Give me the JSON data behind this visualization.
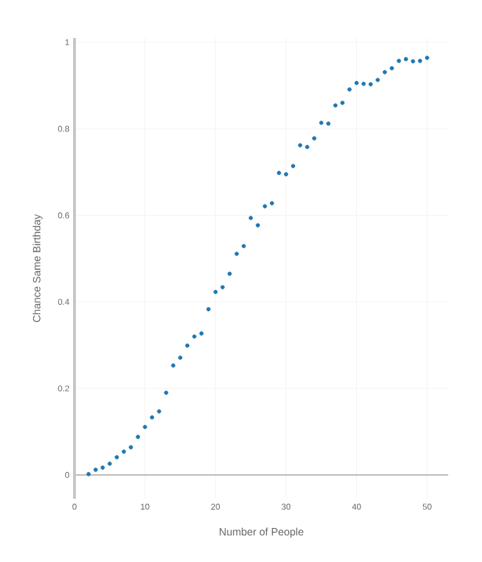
{
  "chart_data": {
    "type": "scatter",
    "xlabel": "Number of People",
    "ylabel": "Chance Same Birthday",
    "x": [
      2,
      3,
      4,
      5,
      6,
      7,
      8,
      9,
      10,
      11,
      12,
      13,
      14,
      15,
      16,
      17,
      18,
      19,
      20,
      21,
      22,
      23,
      24,
      25,
      26,
      27,
      28,
      29,
      30,
      31,
      32,
      33,
      34,
      35,
      36,
      37,
      38,
      39,
      40,
      41,
      42,
      43,
      44,
      45,
      46,
      47,
      48,
      49,
      50
    ],
    "series": [
      {
        "color": "#1f77b4",
        "values": [
          0.002,
          0.012,
          0.017,
          0.026,
          0.041,
          0.054,
          0.064,
          0.088,
          0.111,
          0.133,
          0.147,
          0.19,
          0.253,
          0.271,
          0.299,
          0.32,
          0.327,
          0.383,
          0.423,
          0.434,
          0.465,
          0.511,
          0.529,
          0.594,
          0.577,
          0.621,
          0.628,
          0.698,
          0.695,
          0.714,
          0.762,
          0.758,
          0.778,
          0.814,
          0.812,
          0.854,
          0.86,
          0.891,
          0.906,
          0.904,
          0.903,
          0.913,
          0.931,
          0.94,
          0.957,
          0.961,
          0.956,
          0.957,
          0.964
        ]
      }
    ],
    "xlim": [
      0,
      53
    ],
    "ylim": [
      -0.055,
      1.01
    ],
    "xticks": [
      0,
      10,
      20,
      30,
      40,
      50
    ],
    "yticks": [
      0,
      0.2,
      0.4,
      0.6,
      0.8,
      1
    ],
    "grid": true,
    "marker": "circle"
  }
}
